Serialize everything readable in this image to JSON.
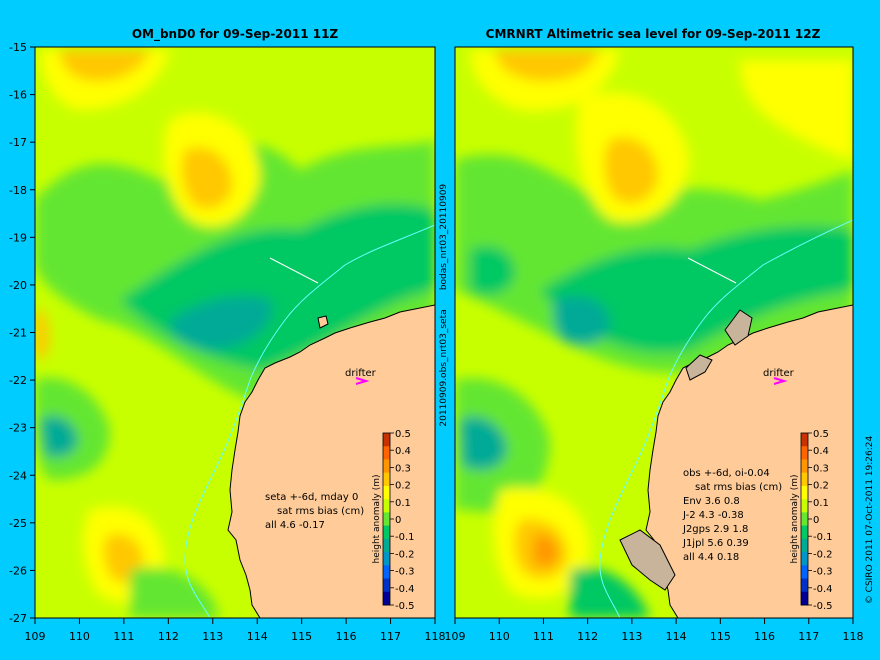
{
  "colors": {
    "background": "#00ccff",
    "land": "#ffcc99",
    "land_alt": "#c8b49a",
    "coast": "#000000",
    "current": "#66ffff",
    "drifter_marker": "#ff00ff"
  },
  "left_panel": {
    "title": "OM_bnD0 for 09-Sep-2011 11Z",
    "note_lines": [
      "seta +-6d, mday 0",
      "sat rms bias (cm)",
      "all 4.6 -0.17"
    ],
    "drifter_label": "drifter"
  },
  "right_panel": {
    "title": "CMRNRT Altimetric sea level  for 09-Sep-2011 12Z",
    "note_lines": [
      "obs +-6d, oi-0.04",
      "sat rms bias (cm)",
      "Env   3.6 0.8",
      "J-2   4.3 -0.38",
      "J2gps 2.9 1.8",
      "J1jpl 5.6 0.39",
      "all 4.4 0.18"
    ],
    "drifter_label": "drifter"
  },
  "axes": {
    "x_ticks": [
      "109",
      "110",
      "111",
      "112",
      "113",
      "114",
      "115",
      "116",
      "117",
      "118"
    ],
    "y_ticks": [
      "-15",
      "-16",
      "-17",
      "-18",
      "-19",
      "-20",
      "-21",
      "-22",
      "-23",
      "-24",
      "-25",
      "-26",
      "-27"
    ],
    "lon_range": [
      109,
      118
    ],
    "lat_range": [
      -27,
      -15
    ]
  },
  "colorbar": {
    "label": "height anomaly (m)",
    "ticks": [
      "0.5",
      "0.4",
      "0.3",
      "0.2",
      "0.1",
      "0",
      "-0.1",
      "-0.2",
      "-0.3",
      "-0.4",
      "-0.5"
    ],
    "colors": [
      "#c83200",
      "#ff6400",
      "#ff9600",
      "#ffc800",
      "#ffff00",
      "#c8ff00",
      "#64e632",
      "#00c864",
      "#00aa96",
      "#0096c8",
      "#0064ff",
      "#0032c8",
      "#000096"
    ]
  },
  "middle_labels": {
    "upper": "bodas_nrt03_20110909",
    "lower": "20110909.obs_nrt03_seta"
  },
  "credit": "© CSIRO 2011  07-Oct-2011 19:26:24"
}
